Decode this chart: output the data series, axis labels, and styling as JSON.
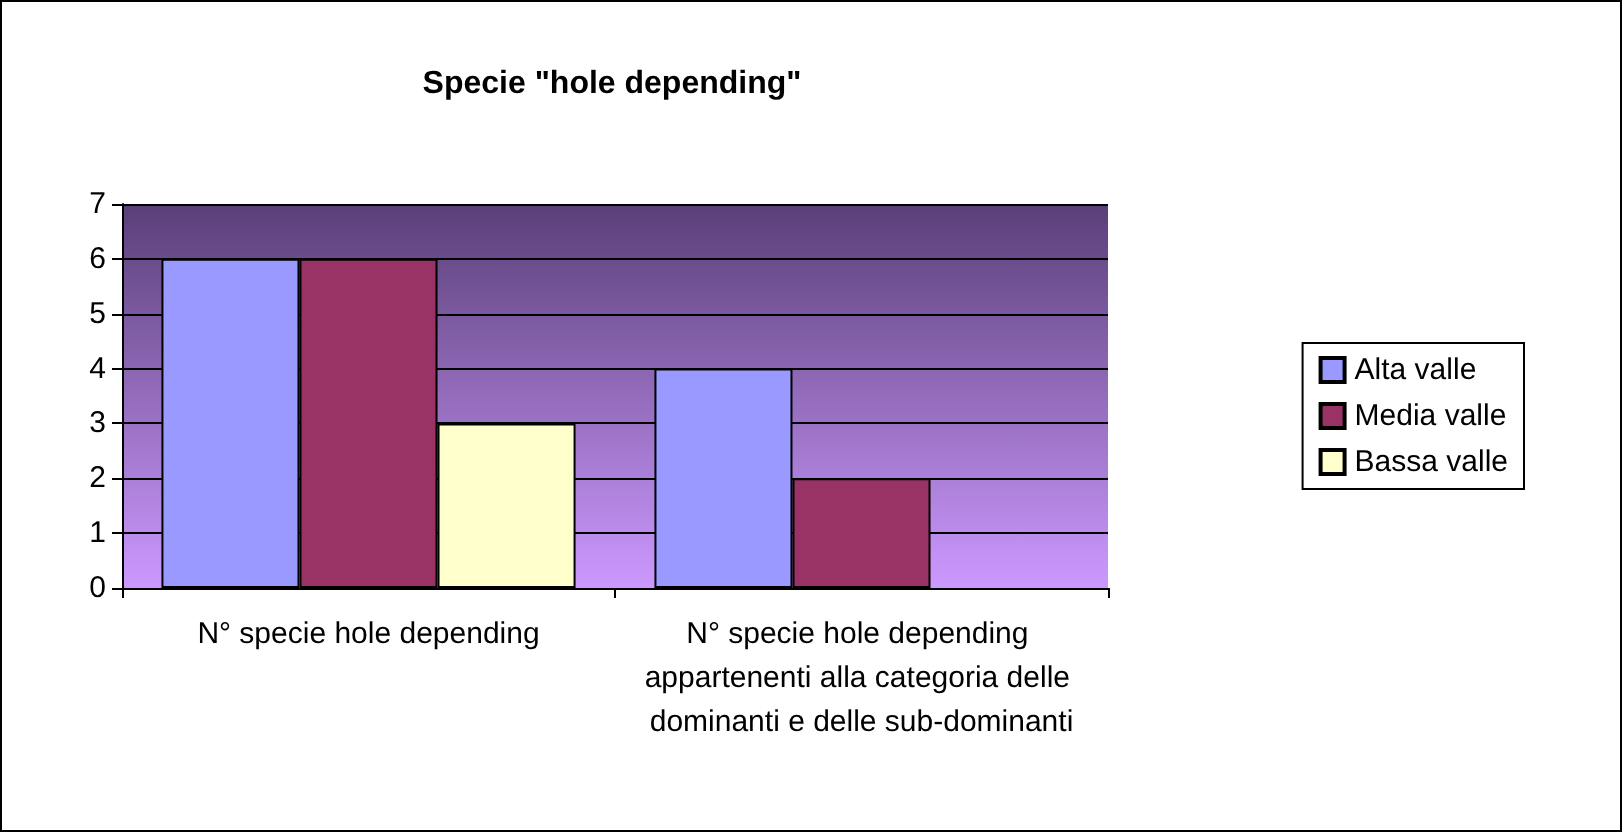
{
  "chart_data": {
    "type": "bar",
    "title": "Specie \"hole depending\"",
    "categories": [
      "N° specie hole depending",
      "N° specie hole depending appartenenti alla categoria delle dominanti e delle sub-dominanti"
    ],
    "series": [
      {
        "name": "Alta valle",
        "color": "#9999ff",
        "values": [
          6,
          4
        ]
      },
      {
        "name": "Media valle",
        "color": "#993366",
        "values": [
          6,
          2
        ]
      },
      {
        "name": "Bassa valle",
        "color": "#ffffcc",
        "values": [
          3,
          null
        ]
      }
    ],
    "ylim": [
      0,
      7
    ],
    "yticks": [
      0,
      1,
      2,
      3,
      4,
      5,
      6,
      7
    ],
    "grid": "y",
    "legend": "right"
  }
}
